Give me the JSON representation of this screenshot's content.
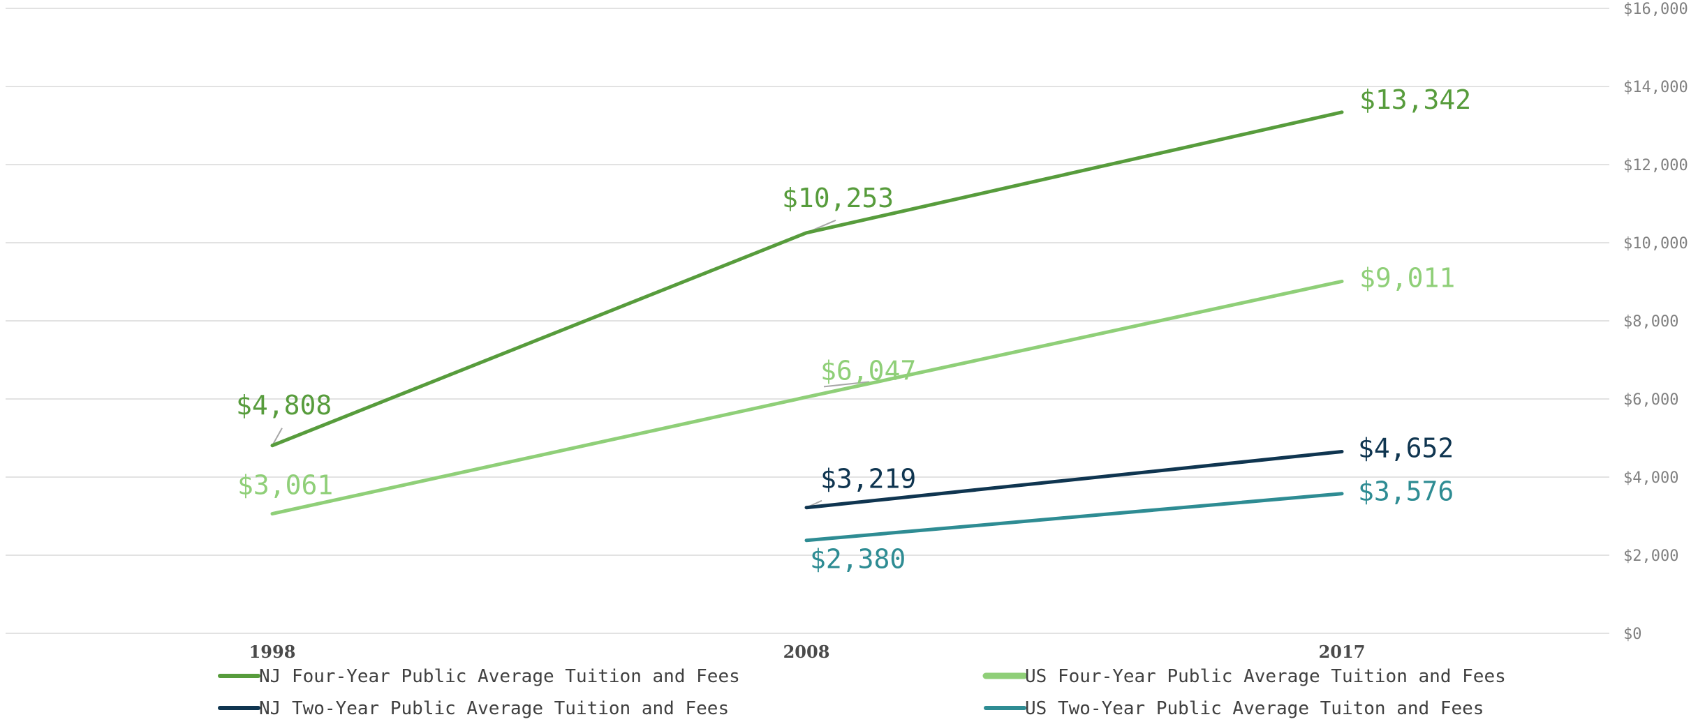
{
  "chart_data": {
    "type": "line",
    "categories": [
      "1998",
      "2008",
      "2017"
    ],
    "ylim": [
      0,
      16000
    ],
    "yticks": [
      "$0",
      "$2,000",
      "$4,000",
      "$6,000",
      "$8,000",
      "$10,000",
      "$12,000",
      "$14,000",
      "$16,000"
    ],
    "grid": true,
    "y_axis_side": "right",
    "legend_position": "bottom",
    "series": [
      {
        "name": "NJ Four-Year Public Average Tuition and Fees",
        "color": "#579c3c",
        "values": [
          4808,
          10253,
          13342
        ],
        "labels": [
          "$4,808",
          "$10,253",
          "$13,342"
        ]
      },
      {
        "name": "US Four-Year Public Average Tuition and Fees",
        "color": "#8fcf78",
        "values": [
          3061,
          6047,
          9011
        ],
        "labels": [
          "$3,061",
          "$6,047",
          "$9,011"
        ]
      },
      {
        "name": "NJ Two-Year Public Average Tuition and Fees",
        "color": "#0f3550",
        "values": [
          null,
          3219,
          4652
        ],
        "labels": [
          "",
          "$3,219",
          "$4,652"
        ]
      },
      {
        "name": "US Two-Year Public Average Tuiton and Fees",
        "color": "#2e8c93",
        "values": [
          null,
          2380,
          3576
        ],
        "labels": [
          "",
          "$2,380",
          "$3,576"
        ]
      }
    ]
  }
}
